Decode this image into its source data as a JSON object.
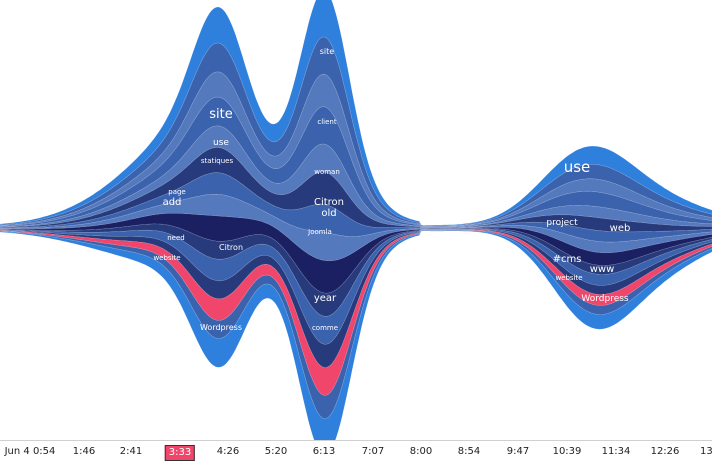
{
  "chart_data": {
    "type": "area",
    "layout": "streamgraph",
    "x_ticks": [
      "Jun 4 0:54",
      "1:46",
      "2:41",
      "3:33",
      "4:26",
      "5:20",
      "6:13",
      "7:07",
      "8:00",
      "8:54",
      "9:47",
      "10:39",
      "11:34",
      "12:26",
      "13"
    ],
    "selected_tick": "3:33",
    "word_labels": [
      {
        "text": "site",
        "cluster": 1,
        "size": "large"
      },
      {
        "text": "use",
        "cluster": 1,
        "size": "small"
      },
      {
        "text": "statiques",
        "cluster": 1,
        "size": "small"
      },
      {
        "text": "page",
        "cluster": 1,
        "size": "small"
      },
      {
        "text": "add",
        "cluster": 1,
        "size": "medium"
      },
      {
        "text": "need",
        "cluster": 1,
        "size": "small"
      },
      {
        "text": "website",
        "cluster": 1,
        "size": "small"
      },
      {
        "text": "Citron",
        "cluster": 1,
        "size": "small"
      },
      {
        "text": "Wordpress",
        "cluster": 1,
        "size": "small"
      },
      {
        "text": "site",
        "cluster": 2,
        "size": "small"
      },
      {
        "text": "client",
        "cluster": 2,
        "size": "small"
      },
      {
        "text": "woman",
        "cluster": 2,
        "size": "small"
      },
      {
        "text": "Citron",
        "cluster": 2,
        "size": "medium"
      },
      {
        "text": "old",
        "cluster": 2,
        "size": "medium"
      },
      {
        "text": "Joomla",
        "cluster": 2,
        "size": "small"
      },
      {
        "text": "year",
        "cluster": 2,
        "size": "medium"
      },
      {
        "text": "comme",
        "cluster": 2,
        "size": "small"
      },
      {
        "text": "use",
        "cluster": 3,
        "size": "xlarge"
      },
      {
        "text": "project",
        "cluster": 3,
        "size": "medium"
      },
      {
        "text": "web",
        "cluster": 3,
        "size": "medium"
      },
      {
        "text": "#cms",
        "cluster": 3,
        "size": "medium"
      },
      {
        "text": "www",
        "cluster": 3,
        "size": "medium"
      },
      {
        "text": "website",
        "cluster": 3,
        "size": "small"
      },
      {
        "text": "Wordpress",
        "cluster": 3,
        "size": "small"
      }
    ],
    "colors": {
      "outer": "#2f7fdc",
      "mid": "#3b62ad",
      "light": "#5579bd",
      "dark": "#273a7c",
      "darkest": "#1a2062",
      "highlight": "#f0466b"
    }
  }
}
